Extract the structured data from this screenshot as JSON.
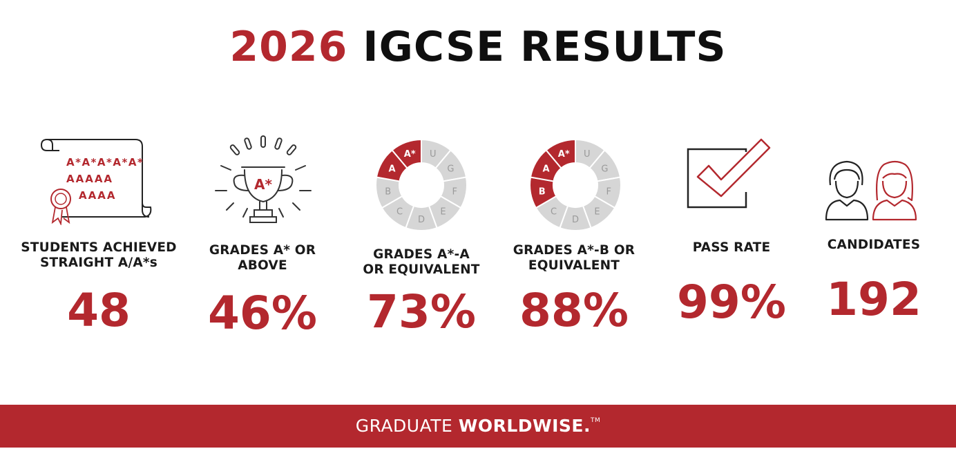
{
  "title": {
    "year": "2026",
    "rest": "IGCSE RESULTS"
  },
  "colors": {
    "accent": "#b3282e",
    "muted": "#d6d6d6",
    "text": "#111111"
  },
  "stats": [
    {
      "icon": "certificate-scroll-icon",
      "label_line1": "STUDENTS ACHIEVED",
      "label_line2": "STRAIGHT A/A*s",
      "value": "48",
      "icon_text": {
        "row1": "A*A*A*A*A*",
        "row2": "AAAAA",
        "row3": "AAAA"
      }
    },
    {
      "icon": "trophy-icon",
      "label_line1": "GRADES A* OR",
      "label_line2": "ABOVE",
      "value": "46%",
      "icon_text": {
        "cup": "A*"
      }
    },
    {
      "icon": "grade-donut-icon",
      "label_line1": "GRADES A*-A",
      "label_line2": "OR EQUIVALENT",
      "value": "73%"
    },
    {
      "icon": "grade-donut-icon",
      "label_line1": "GRADES A*-B OR",
      "label_line2": "EQUIVALENT",
      "value": "88%"
    },
    {
      "icon": "checkbox-tick-icon",
      "label_line1": "PASS RATE",
      "label_line2": "",
      "value": "99%"
    },
    {
      "icon": "students-icon",
      "label_line1": "CANDIDATES",
      "label_line2": "",
      "value": "192"
    }
  ],
  "donuts": [
    {
      "segments": [
        "A*",
        "U",
        "G",
        "F",
        "E",
        "D",
        "C",
        "B",
        "A"
      ],
      "highlighted": [
        "A*",
        "A"
      ]
    },
    {
      "segments": [
        "A*",
        "U",
        "G",
        "F",
        "E",
        "D",
        "C",
        "B",
        "A"
      ],
      "highlighted": [
        "A*",
        "A",
        "B"
      ]
    }
  ],
  "footer": {
    "brand_light": "GRADUATE",
    "brand_bold": "WORLDWISE.",
    "trademark": "TM"
  }
}
